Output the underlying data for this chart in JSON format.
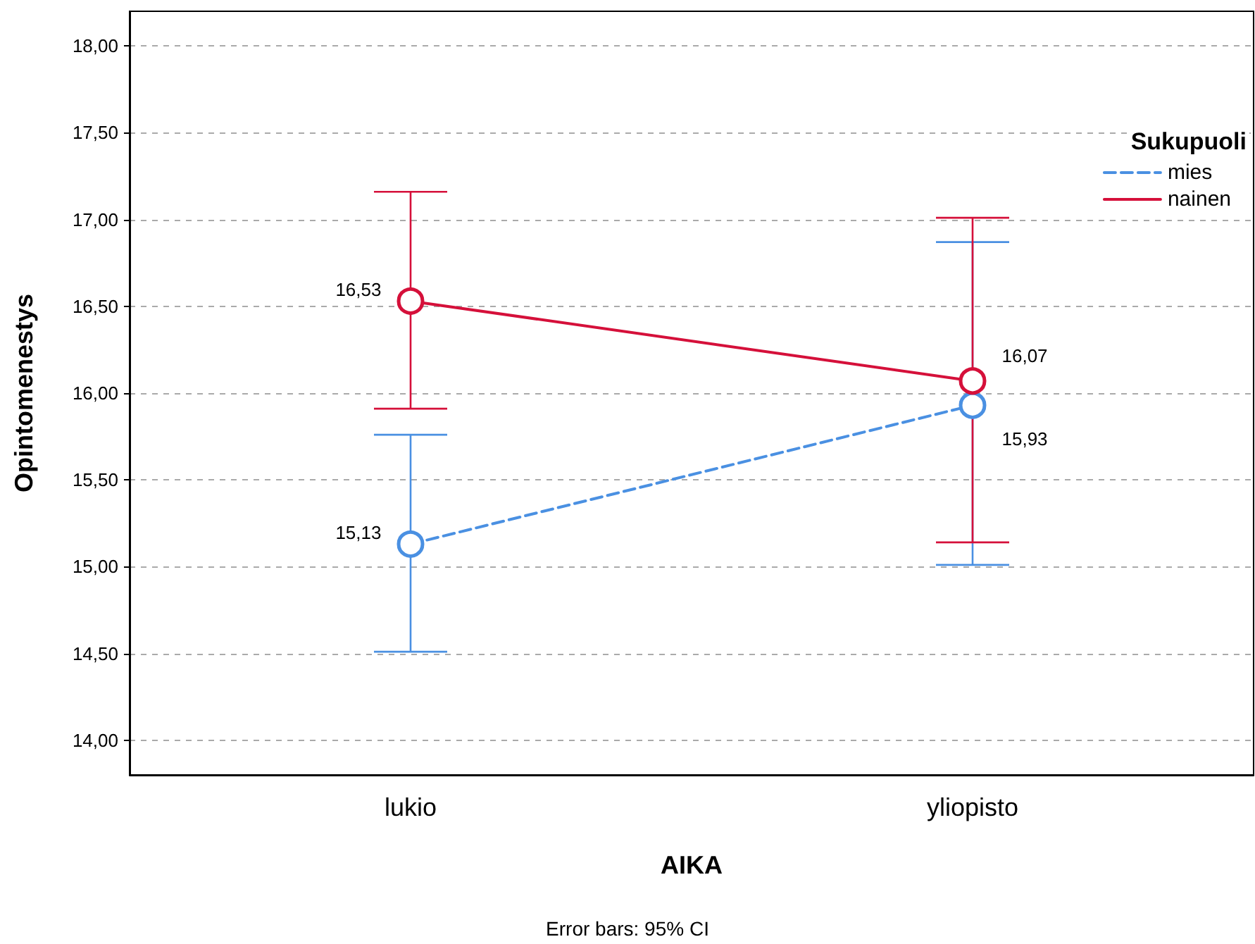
{
  "chart_data": {
    "type": "line",
    "xlabel": "AIKA",
    "ylabel": "Opintomenestys",
    "legend_title": "Sukupuoli",
    "categories": [
      "lukio",
      "yliopisto"
    ],
    "series": [
      {
        "name": "mies",
        "color": "#4a90e2",
        "line_style": "dashed",
        "values": [
          15.13,
          15.93
        ],
        "value_labels": [
          "15,13",
          "15,93"
        ],
        "errors": [
          [
            14.51,
            15.76
          ],
          [
            15.01,
            16.87
          ]
        ]
      },
      {
        "name": "nainen",
        "color": "#d5103a",
        "line_style": "solid",
        "values": [
          16.53,
          16.07
        ],
        "value_labels": [
          "16,53",
          "16,07"
        ],
        "errors": [
          [
            15.91,
            17.16
          ],
          [
            15.14,
            17.01
          ]
        ]
      }
    ],
    "ylim": [
      13.8,
      18.2
    ],
    "yticks": [
      {
        "value": 14,
        "label": "14,00"
      },
      {
        "value": 14.5,
        "label": "14,50"
      },
      {
        "value": 15,
        "label": "15,00"
      },
      {
        "value": 15.5,
        "label": "15,50"
      },
      {
        "value": 16,
        "label": "16,00"
      },
      {
        "value": 16.5,
        "label": "16,50"
      },
      {
        "value": 17,
        "label": "17,00"
      },
      {
        "value": 17.5,
        "label": "17,50"
      },
      {
        "value": 18,
        "label": "18,00"
      }
    ],
    "grid": "y",
    "legend": "top right",
    "marker": "circle",
    "annotations": [
      "Error bars: 95% CI"
    ]
  }
}
